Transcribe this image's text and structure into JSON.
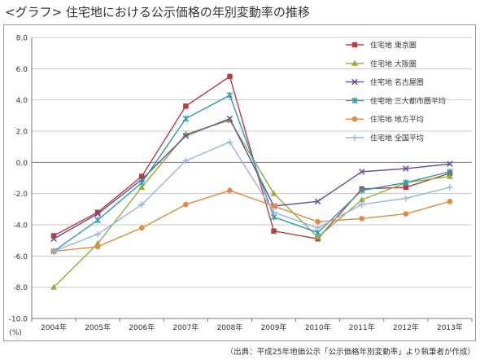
{
  "header": {
    "title": "<グラフ> 住宅地における公示価格の年別変動率の推移"
  },
  "footer": {
    "source": "（出典：平成25年地価公示「公示価格年別変動率」より執筆者が作成）"
  },
  "chart_data": {
    "type": "line",
    "unit_label": "(%)",
    "categories": [
      "2004年",
      "2005年",
      "2006年",
      "2007年",
      "2008年",
      "2009年",
      "2010年",
      "2011年",
      "2012年",
      "2013年"
    ],
    "ylim": [
      -10.0,
      8.0
    ],
    "yticks": [
      "8.0",
      "6.0",
      "4.0",
      "2.0",
      "0.0",
      "-2.0",
      "-4.0",
      "-6.0",
      "-8.0",
      "-10.0"
    ],
    "ytick_values": [
      8,
      6,
      4,
      2,
      0,
      -2,
      -4,
      -6,
      -8,
      -10
    ],
    "grid": true,
    "legend_position": "top-right",
    "series": [
      {
        "name": "住宅地 東京圏",
        "color": "#c0393b",
        "marker": "square",
        "values": [
          -4.7,
          -3.2,
          -0.9,
          3.6,
          5.5,
          -4.4,
          -4.9,
          -1.7,
          -1.6,
          -0.7
        ]
      },
      {
        "name": "住宅地 大阪圏",
        "color": "#8db13e",
        "marker": "triangle",
        "values": [
          -8.0,
          -5.2,
          -1.6,
          1.8,
          2.7,
          -2.0,
          -4.8,
          -2.4,
          -1.3,
          -0.9
        ]
      },
      {
        "name": "住宅地 名古屋圏",
        "color": "#6a4b9c",
        "marker": "x",
        "values": [
          -4.9,
          -3.3,
          -1.1,
          1.7,
          2.8,
          -2.8,
          -2.5,
          -0.6,
          -0.4,
          -0.1
        ]
      },
      {
        "name": "住宅地 三大都市圏平均",
        "color": "#2b9bb2",
        "marker": "asterisk",
        "values": [
          -5.7,
          -3.7,
          -1.3,
          2.8,
          4.3,
          -3.5,
          -4.5,
          -1.8,
          -1.3,
          -0.6
        ]
      },
      {
        "name": "住宅地 地方平均",
        "color": "#e8883a",
        "marker": "circle",
        "values": [
          -5.7,
          -5.4,
          -4.2,
          -2.7,
          -1.8,
          -2.8,
          -3.8,
          -3.6,
          -3.3,
          -2.5
        ]
      },
      {
        "name": "住宅地 全国平均",
        "color": "#98b4dc",
        "marker": "plus",
        "values": [
          -5.7,
          -4.6,
          -2.7,
          0.1,
          1.3,
          -3.2,
          -4.2,
          -2.7,
          -2.3,
          -1.6
        ]
      }
    ]
  }
}
